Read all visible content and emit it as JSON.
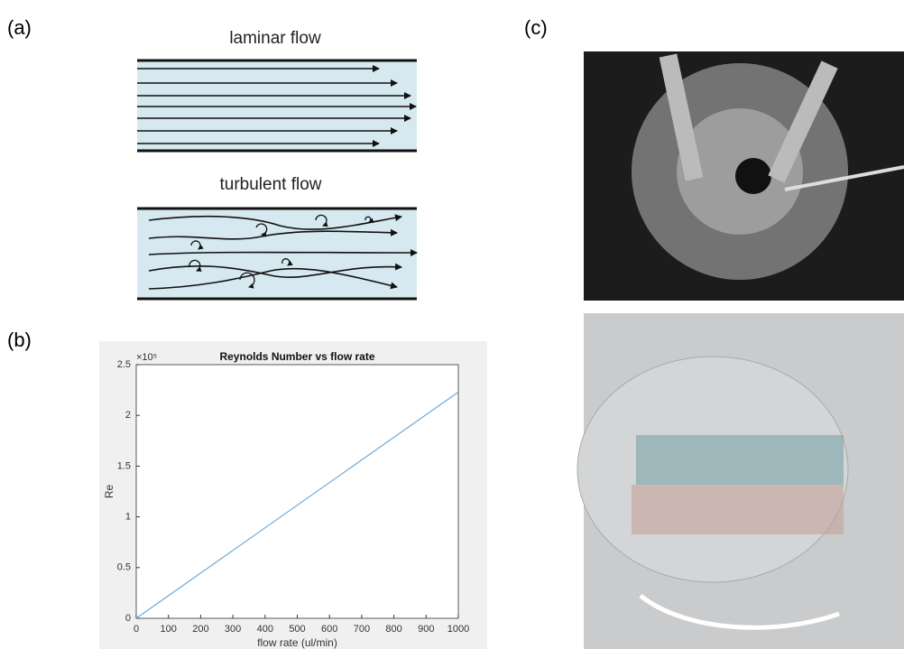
{
  "panels": {
    "a": {
      "label": "(a)",
      "laminar_title": "laminar flow",
      "turbulent_title": "turbulent flow"
    },
    "b": {
      "label": "(b)"
    },
    "c": {
      "label": "(c)"
    }
  },
  "chart_data": {
    "type": "line",
    "title": "Reynolds Number vs flow rate",
    "x_label": "flow rate (ul/min)",
    "y_label": "Re",
    "y_multiplier": "×10⁵",
    "x": [
      0,
      1000
    ],
    "series": [
      {
        "name": "Re",
        "color": "#6fa8d6",
        "values": [
          0,
          2.23
        ]
      }
    ],
    "xlim": [
      0,
      1000
    ],
    "xticks": [
      0,
      100,
      200,
      300,
      400,
      500,
      600,
      700,
      800,
      900,
      1000
    ],
    "ylim": [
      0,
      2.5
    ],
    "yticks": [
      0,
      0.5,
      1,
      1.5,
      2,
      2.5
    ]
  }
}
